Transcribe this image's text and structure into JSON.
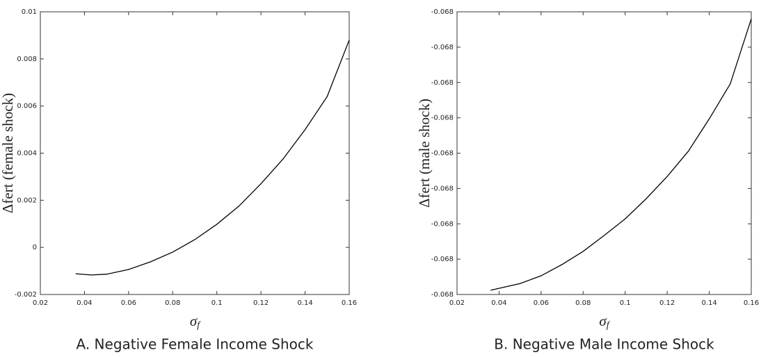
{
  "chart_data": [
    {
      "type": "line",
      "caption": "A. Negative Female Income Shock",
      "ylabel": "Δfert (female shock)",
      "xlabel": "σ",
      "xlabel_sub": "f",
      "x": [
        0.036,
        0.043,
        0.05,
        0.06,
        0.07,
        0.08,
        0.09,
        0.1,
        0.11,
        0.12,
        0.13,
        0.14,
        0.15,
        0.16
      ],
      "series": [
        {
          "color": "#000000",
          "values": [
            -0.00112,
            -0.00117,
            -0.00114,
            -0.00094,
            -0.00061,
            -0.0002,
            0.00033,
            0.00098,
            0.00175,
            0.0027,
            0.00375,
            0.005,
            0.0064,
            0.0088
          ]
        }
      ],
      "xlim": [
        0.02,
        0.16
      ],
      "xticks": [
        0.02,
        0.04,
        0.06,
        0.08,
        0.1,
        0.12,
        0.14,
        0.16
      ],
      "ylim": [
        -0.002,
        0.01
      ],
      "yticks": [
        -0.002,
        0,
        0.002,
        0.004,
        0.006,
        0.008,
        0.01
      ]
    },
    {
      "type": "line",
      "caption": "B. Negative Male Income Shock",
      "ylabel": "Δfert (male shock)",
      "xlabel": "σ",
      "xlabel_sub": "f",
      "x": [
        0.036,
        0.05,
        0.06,
        0.07,
        0.08,
        0.09,
        0.1,
        0.11,
        0.12,
        0.13,
        0.14,
        0.15,
        0.16
      ],
      "series": [
        {
          "color": "#000000",
          "values": [
            -0.068388,
            -0.068369,
            -0.068347,
            -0.068315,
            -0.068278,
            -0.068233,
            -0.068186,
            -0.068129,
            -0.068066,
            -0.067995,
            -0.067903,
            -0.067804,
            -0.06762
          ]
        }
      ],
      "xlim": [
        0.02,
        0.16
      ],
      "xticks": [
        0.02,
        0.04,
        0.06,
        0.08,
        0.1,
        0.12,
        0.14,
        0.16
      ],
      "ylim": [
        -0.0684,
        -0.0676
      ],
      "yticks": [
        {
          "value": -0.0684,
          "label": "-0.068"
        },
        {
          "value": -0.0683,
          "label": "-0.068"
        },
        {
          "value": -0.0682,
          "label": "-0.068"
        },
        {
          "value": -0.0681,
          "label": "-0.068"
        },
        {
          "value": -0.068,
          "label": "-0.068"
        },
        {
          "value": -0.0679,
          "label": "-0.068"
        },
        {
          "value": -0.0678,
          "label": "-0.068"
        },
        {
          "value": -0.0677,
          "label": "-0.068"
        },
        {
          "value": -0.0676,
          "label": "-0.068"
        }
      ]
    }
  ]
}
